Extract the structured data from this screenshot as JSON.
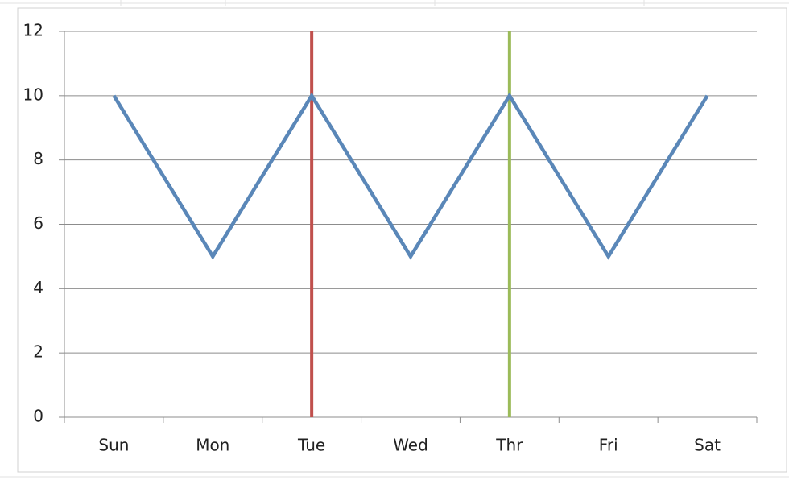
{
  "chart_data": {
    "type": "line",
    "categories": [
      "Sun",
      "Mon",
      "Tue",
      "Wed",
      "Thr",
      "Fri",
      "Sat"
    ],
    "series": [
      {
        "color": "#5a87b8",
        "values": [
          10,
          5,
          10,
          5,
          10,
          5,
          10
        ]
      }
    ],
    "vertical_lines": [
      {
        "category_index": 2,
        "color": "#c0504d"
      },
      {
        "category_index": 4,
        "color": "#9bbb59"
      }
    ],
    "ylim": [
      0,
      12
    ],
    "yticks": [
      0,
      2,
      4,
      6,
      8,
      10,
      12
    ],
    "grid": true
  }
}
